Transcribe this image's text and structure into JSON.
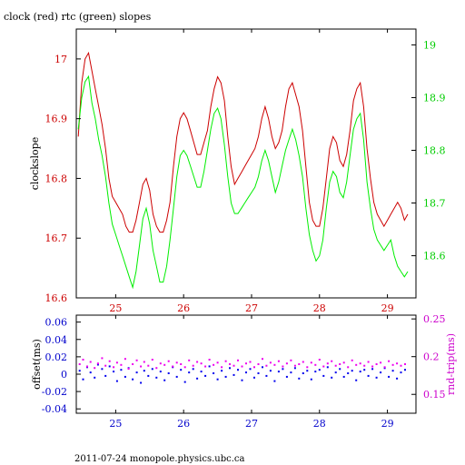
{
  "chart_data": [
    {
      "type": "line",
      "title": "clock (red) rtc (green) slopes",
      "ylabel": "clockslope",
      "y2label": "",
      "xlim": [
        24.42,
        29.42
      ],
      "ylim": [
        16.6,
        17.05
      ],
      "y2lim": [
        18.52,
        19.03
      ],
      "x_ticks": [
        25,
        26,
        27,
        28,
        29
      ],
      "y_ticks": [
        16.6,
        16.7,
        16.8,
        16.9,
        17
      ],
      "y2_ticks": [
        18.6,
        18.7,
        18.8,
        18.9,
        19
      ],
      "x_tick_labels": [
        "25",
        "26",
        "27",
        "28",
        "29"
      ],
      "y_tick_labels": [
        "16.6",
        "16.7",
        "16.8",
        "16.9",
        "17"
      ],
      "y2_tick_labels": [
        "18.6",
        "18.7",
        "18.8",
        "18.9",
        "19"
      ],
      "colors": {
        "axes": "#000000",
        "x_ticks": "#cc0000",
        "y_ticks": "#cc0000",
        "y2_ticks": "#00cc00"
      },
      "series": [
        {
          "color": "#cc0000",
          "axis": "left",
          "x": [
            24.45,
            24.5,
            24.55,
            24.6,
            24.65,
            24.7,
            24.75,
            24.8,
            24.85,
            24.9,
            24.95,
            25.0,
            25.05,
            25.1,
            25.15,
            25.2,
            25.25,
            25.3,
            25.35,
            25.4,
            25.45,
            25.5,
            25.55,
            25.6,
            25.65,
            25.7,
            25.75,
            25.8,
            25.85,
            25.9,
            25.95,
            26.0,
            26.05,
            26.1,
            26.15,
            26.2,
            26.25,
            26.3,
            26.35,
            26.4,
            26.45,
            26.5,
            26.55,
            26.6,
            26.65,
            26.7,
            26.75,
            26.8,
            26.85,
            26.9,
            26.95,
            27.0,
            27.05,
            27.1,
            27.15,
            27.2,
            27.25,
            27.3,
            27.35,
            27.4,
            27.45,
            27.5,
            27.55,
            27.6,
            27.65,
            27.7,
            27.75,
            27.8,
            27.85,
            27.9,
            27.95,
            28.0,
            28.05,
            28.1,
            28.15,
            28.2,
            28.25,
            28.3,
            28.35,
            28.4,
            28.45,
            28.5,
            28.55,
            28.6,
            28.65,
            28.7,
            28.75,
            28.8,
            28.85,
            28.9,
            28.95,
            29.0,
            29.05,
            29.1,
            29.15,
            29.2,
            29.25,
            29.3
          ],
          "values": [
            16.87,
            16.96,
            17.0,
            17.01,
            16.98,
            16.95,
            16.92,
            16.89,
            16.85,
            16.8,
            16.77,
            16.76,
            16.75,
            16.74,
            16.72,
            16.71,
            16.71,
            16.73,
            16.76,
            16.79,
            16.8,
            16.78,
            16.74,
            16.72,
            16.71,
            16.71,
            16.73,
            16.76,
            16.82,
            16.87,
            16.9,
            16.91,
            16.9,
            16.88,
            16.86,
            16.84,
            16.84,
            16.86,
            16.88,
            16.92,
            16.95,
            16.97,
            16.96,
            16.93,
            16.87,
            16.82,
            16.79,
            16.8,
            16.81,
            16.82,
            16.83,
            16.84,
            16.85,
            16.87,
            16.9,
            16.92,
            16.9,
            16.87,
            16.85,
            16.86,
            16.88,
            16.92,
            16.95,
            16.96,
            16.94,
            16.92,
            16.88,
            16.82,
            16.76,
            16.73,
            16.72,
            16.72,
            16.75,
            16.8,
            16.85,
            16.87,
            16.86,
            16.83,
            16.82,
            16.84,
            16.88,
            16.93,
            16.95,
            16.96,
            16.92,
            16.85,
            16.8,
            16.76,
            16.74,
            16.73,
            16.72,
            16.73,
            16.74,
            16.75,
            16.76,
            16.75,
            16.73,
            16.74
          ]
        },
        {
          "color": "#00ee00",
          "axis": "right",
          "x": [
            24.45,
            24.5,
            24.55,
            24.6,
            24.65,
            24.7,
            24.75,
            24.8,
            24.85,
            24.9,
            24.95,
            25.0,
            25.05,
            25.1,
            25.15,
            25.2,
            25.25,
            25.3,
            25.35,
            25.4,
            25.45,
            25.5,
            25.55,
            25.6,
            25.65,
            25.7,
            25.75,
            25.8,
            25.85,
            25.9,
            25.95,
            26.0,
            26.05,
            26.1,
            26.15,
            26.2,
            26.25,
            26.3,
            26.35,
            26.4,
            26.45,
            26.5,
            26.55,
            26.6,
            26.65,
            26.7,
            26.75,
            26.8,
            26.85,
            26.9,
            26.95,
            27.0,
            27.05,
            27.1,
            27.15,
            27.2,
            27.25,
            27.3,
            27.35,
            27.4,
            27.45,
            27.5,
            27.55,
            27.6,
            27.65,
            27.7,
            27.75,
            27.8,
            27.85,
            27.9,
            27.95,
            28.0,
            28.05,
            28.1,
            28.15,
            28.2,
            28.25,
            28.3,
            28.35,
            28.4,
            28.45,
            28.5,
            28.55,
            28.6,
            28.65,
            28.7,
            28.75,
            28.8,
            28.85,
            28.9,
            28.95,
            29.0,
            29.05,
            29.1,
            29.15,
            29.2,
            29.25,
            29.3
          ],
          "values": [
            18.84,
            18.9,
            18.93,
            18.94,
            18.89,
            18.86,
            18.82,
            18.79,
            18.75,
            18.7,
            18.66,
            18.64,
            18.62,
            18.6,
            18.58,
            18.56,
            18.54,
            18.57,
            18.62,
            18.67,
            18.69,
            18.66,
            18.61,
            18.58,
            18.55,
            18.55,
            18.58,
            18.63,
            18.69,
            18.75,
            18.79,
            18.8,
            18.79,
            18.77,
            18.75,
            18.73,
            18.73,
            18.76,
            18.8,
            18.84,
            18.87,
            18.88,
            18.86,
            18.81,
            18.75,
            18.7,
            18.68,
            18.68,
            18.69,
            18.7,
            18.71,
            18.72,
            18.73,
            18.75,
            18.78,
            18.8,
            18.78,
            18.75,
            18.72,
            18.74,
            18.77,
            18.8,
            18.82,
            18.84,
            18.82,
            18.79,
            18.75,
            18.69,
            18.64,
            18.61,
            18.59,
            18.6,
            18.63,
            18.69,
            18.74,
            18.76,
            18.75,
            18.72,
            18.71,
            18.74,
            18.79,
            18.84,
            18.86,
            18.87,
            18.82,
            18.74,
            18.69,
            18.65,
            18.63,
            18.62,
            18.61,
            18.62,
            18.63,
            18.6,
            18.58,
            18.57,
            18.56,
            18.57
          ]
        }
      ]
    },
    {
      "type": "scatter",
      "title": "",
      "ylabel": "offset(ms)",
      "y2label": "rnd-trip(ms)",
      "xlim": [
        24.42,
        29.42
      ],
      "ylim": [
        -0.045,
        0.068
      ],
      "y2lim": [
        0.125,
        0.255
      ],
      "x_ticks": [
        25,
        26,
        27,
        28,
        29
      ],
      "y_ticks": [
        -0.04,
        -0.02,
        0,
        0.02,
        0.04,
        0.06
      ],
      "y2_ticks": [
        0.15,
        0.2,
        0.25
      ],
      "x_tick_labels": [
        "25",
        "26",
        "27",
        "28",
        "29"
      ],
      "y_tick_labels": [
        "-0.04",
        "-0.02",
        "0",
        "0.02",
        "0.04",
        "0.06"
      ],
      "y2_tick_labels": [
        "0.15",
        "0.2",
        "0.25"
      ],
      "colors": {
        "axes": "#000000",
        "x_ticks": "#0000cc",
        "y_ticks": "#0000cc",
        "y2_ticks": "#cc00cc",
        "ylabel": "#000000",
        "y2label": "#cc00cc"
      },
      "series": [
        {
          "color": "#0000ee",
          "axis": "left",
          "x": [
            24.47,
            24.52,
            24.58,
            24.63,
            24.69,
            24.74,
            24.8,
            24.85,
            24.91,
            24.97,
            25.02,
            25.08,
            25.14,
            25.19,
            25.25,
            25.31,
            25.37,
            25.42,
            25.48,
            25.54,
            25.6,
            25.66,
            25.72,
            25.78,
            25.84,
            25.9,
            25.96,
            26.02,
            26.08,
            26.14,
            26.2,
            26.26,
            26.32,
            26.38,
            26.44,
            26.5,
            26.56,
            26.62,
            26.68,
            26.74,
            26.8,
            26.86,
            26.92,
            26.98,
            27.04,
            27.1,
            27.16,
            27.22,
            27.28,
            27.34,
            27.4,
            27.46,
            27.52,
            27.58,
            27.64,
            27.7,
            27.76,
            27.82,
            27.88,
            27.94,
            28.0,
            28.06,
            28.12,
            28.18,
            28.24,
            28.3,
            28.36,
            28.42,
            28.48,
            28.54,
            28.6,
            28.66,
            28.72,
            28.78,
            28.84,
            28.9,
            28.96,
            29.02,
            29.08,
            29.14,
            29.2,
            29.26
          ],
          "values": [
            0.004,
            -0.006,
            0.008,
            0.002,
            -0.004,
            0.011,
            0.006,
            -0.002,
            0.009,
            0.003,
            -0.008,
            0.005,
            -0.003,
            0.007,
            -0.006,
            0.002,
            -0.01,
            0.004,
            -0.002,
            0.006,
            -0.004,
            0.003,
            -0.007,
            0.001,
            0.008,
            -0.003,
            0.005,
            -0.009,
            0.002,
            0.006,
            -0.005,
            0.003,
            -0.002,
            0.009,
            0.001,
            -0.006,
            0.004,
            -0.003,
            0.007,
            -0.001,
            0.005,
            -0.007,
            0.002,
            0.006,
            -0.004,
            0.001,
            0.008,
            -0.002,
            0.004,
            -0.008,
            0.003,
            0.006,
            -0.003,
            0.002,
            0.007,
            -0.005,
            0.001,
            0.004,
            -0.006,
            0.003,
            0.005,
            -0.002,
            0.008,
            -0.004,
            0.002,
            0.006,
            -0.003,
            0.001,
            0.004,
            -0.007,
            0.003,
            0.005,
            -0.002,
            0.006,
            -0.004,
            0.002,
            0.007,
            -0.003,
            0.004,
            -0.005,
            0.002,
            0.005
          ]
        },
        {
          "color": "#ee00ee",
          "axis": "right",
          "x": [
            24.47,
            24.52,
            24.58,
            24.63,
            24.69,
            24.74,
            24.8,
            24.85,
            24.91,
            24.97,
            25.02,
            25.08,
            25.14,
            25.19,
            25.25,
            25.31,
            25.37,
            25.42,
            25.48,
            25.54,
            25.6,
            25.66,
            25.72,
            25.78,
            25.84,
            25.9,
            25.96,
            26.02,
            26.08,
            26.14,
            26.2,
            26.26,
            26.32,
            26.38,
            26.44,
            26.5,
            26.56,
            26.62,
            26.68,
            26.74,
            26.8,
            26.86,
            26.92,
            26.98,
            27.04,
            27.1,
            27.16,
            27.22,
            27.28,
            27.34,
            27.4,
            27.46,
            27.52,
            27.58,
            27.64,
            27.7,
            27.76,
            27.82,
            27.88,
            27.94,
            28.0,
            28.06,
            28.12,
            28.18,
            28.24,
            28.3,
            28.36,
            28.42,
            28.48,
            28.54,
            28.6,
            28.66,
            28.72,
            28.78,
            28.84,
            28.9,
            28.96,
            29.02,
            29.08,
            29.14,
            29.2,
            29.26
          ],
          "values": [
            0.19,
            0.196,
            0.187,
            0.193,
            0.185,
            0.191,
            0.198,
            0.188,
            0.194,
            0.186,
            0.192,
            0.189,
            0.197,
            0.184,
            0.19,
            0.195,
            0.187,
            0.193,
            0.188,
            0.196,
            0.185,
            0.191,
            0.189,
            0.194,
            0.187,
            0.192,
            0.19,
            0.186,
            0.195,
            0.188,
            0.193,
            0.191,
            0.187,
            0.196,
            0.189,
            0.192,
            0.186,
            0.194,
            0.19,
            0.188,
            0.195,
            0.187,
            0.191,
            0.193,
            0.186,
            0.19,
            0.197,
            0.188,
            0.192,
            0.189,
            0.194,
            0.187,
            0.191,
            0.195,
            0.188,
            0.19,
            0.193,
            0.186,
            0.192,
            0.189,
            0.196,
            0.187,
            0.191,
            0.194,
            0.188,
            0.19,
            0.192,
            0.186,
            0.195,
            0.189,
            0.191,
            0.188,
            0.193,
            0.187,
            0.19,
            0.192,
            0.186,
            0.194,
            0.189,
            0.191,
            0.188,
            0.19
          ]
        }
      ]
    }
  ],
  "footer": "2011-07-24 monopole.physics.ubc.ca"
}
